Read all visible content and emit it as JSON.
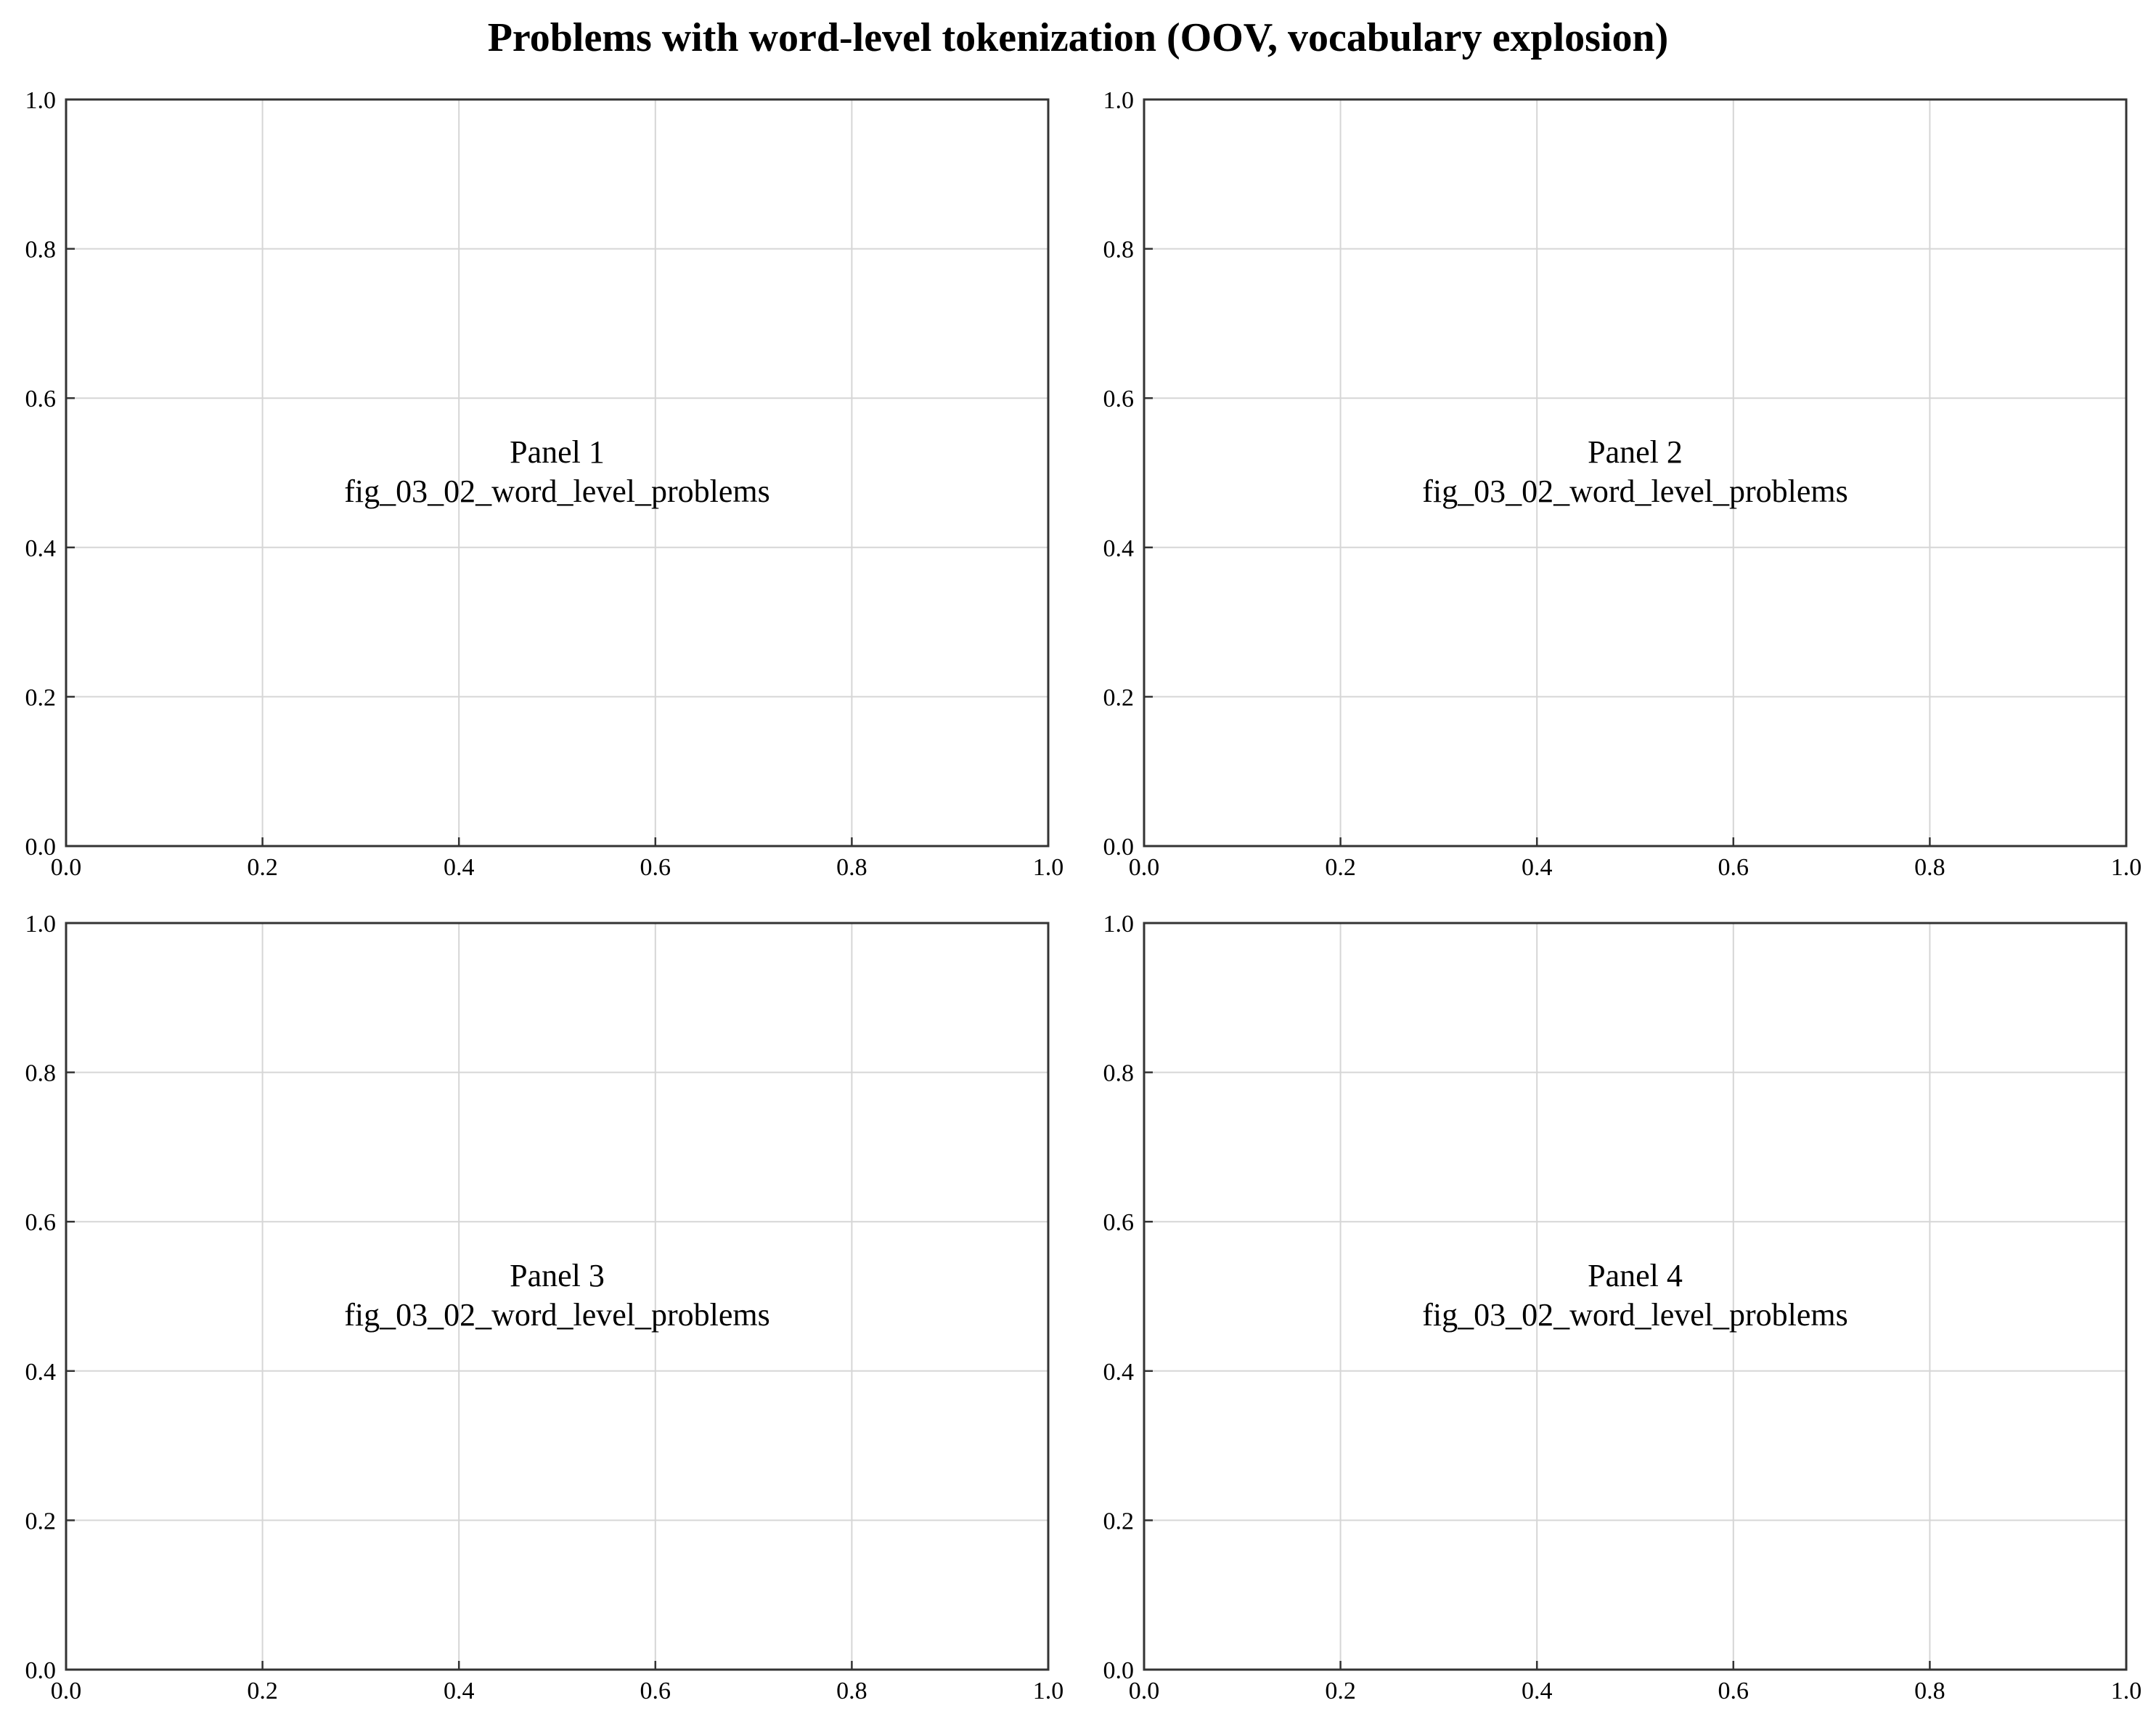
{
  "title": "Problems with word-level tokenization (OOV, vocabulary explosion)",
  "chart_data": [
    {
      "type": "scatter",
      "label": "Panel 1",
      "sublabel": "fig_03_02_word_level_problems",
      "xlim": [
        0.0,
        1.0
      ],
      "ylim": [
        0.0,
        1.0
      ],
      "xticks": [
        "0.0",
        "0.2",
        "0.4",
        "0.6",
        "0.8",
        "1.0"
      ],
      "yticks": [
        "0.0",
        "0.2",
        "0.4",
        "0.6",
        "0.8",
        "1.0"
      ],
      "grid": true,
      "series": []
    },
    {
      "type": "scatter",
      "label": "Panel 2",
      "sublabel": "fig_03_02_word_level_problems",
      "xlim": [
        0.0,
        1.0
      ],
      "ylim": [
        0.0,
        1.0
      ],
      "xticks": [
        "0.0",
        "0.2",
        "0.4",
        "0.6",
        "0.8",
        "1.0"
      ],
      "yticks": [
        "0.0",
        "0.2",
        "0.4",
        "0.6",
        "0.8",
        "1.0"
      ],
      "grid": true,
      "series": []
    },
    {
      "type": "scatter",
      "label": "Panel 3",
      "sublabel": "fig_03_02_word_level_problems",
      "xlim": [
        0.0,
        1.0
      ],
      "ylim": [
        0.0,
        1.0
      ],
      "xticks": [
        "0.0",
        "0.2",
        "0.4",
        "0.6",
        "0.8",
        "1.0"
      ],
      "yticks": [
        "0.0",
        "0.2",
        "0.4",
        "0.6",
        "0.8",
        "1.0"
      ],
      "grid": true,
      "series": []
    },
    {
      "type": "scatter",
      "label": "Panel 4",
      "sublabel": "fig_03_02_word_level_problems",
      "xlim": [
        0.0,
        1.0
      ],
      "ylim": [
        0.0,
        1.0
      ],
      "xticks": [
        "0.0",
        "0.2",
        "0.4",
        "0.6",
        "0.8",
        "1.0"
      ],
      "yticks": [
        "0.0",
        "0.2",
        "0.4",
        "0.6",
        "0.8",
        "1.0"
      ],
      "grid": true,
      "series": []
    }
  ]
}
